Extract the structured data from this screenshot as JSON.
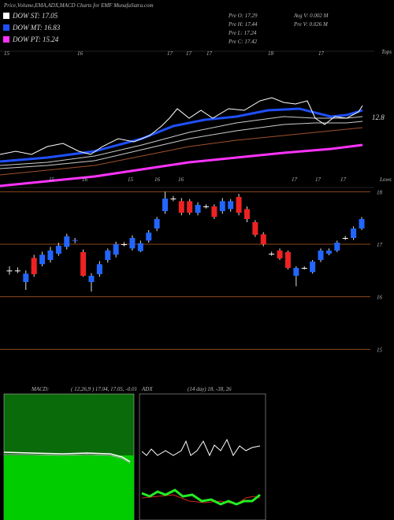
{
  "header": {
    "title": "Price,Volume,EMA,ADX,MACD Charts for EMF MunafaSutra.com"
  },
  "legend": [
    {
      "label": "DOW ST: 17.05",
      "color": "#ffffff"
    },
    {
      "label": "DOW MT: 16.83",
      "color": "#1e50ff"
    },
    {
      "label": "DOW PT: 15.24",
      "color": "#ff33ff"
    }
  ],
  "stats": [
    "Pre  O: 17.29",
    "Pre  H: 17.44",
    "Pre  L: 17.24",
    "Pre  C: 17.42",
    "Avg V: 0.002  M",
    "Pre  V: 0.026  M"
  ],
  "ema_panel": {
    "top_label": "Tops",
    "bottom_label": "Lows",
    "level_label": "12.8",
    "top_dates": [
      "15",
      "16",
      "17",
      "17",
      "17",
      "18",
      "17"
    ],
    "bottom_dates": [
      "15",
      "16",
      "15",
      "16",
      "16",
      "17",
      "17",
      "17"
    ]
  },
  "chart_data": {
    "type": "candlestick",
    "up_color": "#2266ff",
    "down_color": "#ee2222",
    "grid_color": "#8b4a1a",
    "ylim": [
      14.75,
      18.05
    ],
    "yticks": [
      15,
      16,
      17,
      18
    ],
    "open": [
      16.5,
      16.5,
      16.28,
      16.74,
      16.62,
      16.7,
      16.82,
      16.95,
      17.07,
      16.85,
      16.28,
      16.43,
      16.7,
      16.8,
      17.0,
      16.92,
      16.87,
      17.07,
      17.3,
      17.63,
      17.87,
      17.82,
      17.82,
      17.6,
      17.72,
      17.72,
      17.63,
      17.67,
      17.9,
      17.67,
      17.42,
      17.19,
      16.82,
      16.88,
      16.85,
      16.4,
      16.55,
      16.47,
      16.7,
      16.82,
      16.88,
      17.12,
      17.12,
      17.3
    ],
    "high": [
      16.58,
      16.56,
      16.5,
      16.8,
      16.86,
      16.95,
      17.03,
      17.2,
      17.12,
      16.9,
      16.45,
      16.68,
      16.92,
      17.05,
      17.04,
      17.17,
      17.07,
      17.27,
      17.52,
      18.0,
      17.92,
      17.88,
      17.86,
      17.8,
      17.76,
      17.76,
      17.88,
      17.86,
      17.96,
      17.72,
      17.46,
      17.23,
      16.86,
      16.92,
      16.88,
      16.58,
      16.58,
      16.7,
      16.92,
      16.92,
      17.07,
      17.16,
      17.34,
      17.52
    ],
    "low": [
      16.42,
      16.45,
      16.13,
      16.38,
      16.58,
      16.65,
      16.78,
      16.9,
      17.02,
      16.38,
      16.1,
      16.38,
      16.65,
      16.75,
      16.96,
      16.88,
      16.85,
      17.03,
      17.25,
      17.58,
      17.82,
      17.55,
      17.56,
      17.55,
      17.68,
      17.48,
      17.58,
      17.62,
      17.55,
      17.42,
      17.14,
      16.96,
      16.78,
      16.7,
      16.52,
      16.2,
      16.52,
      16.44,
      16.66,
      16.79,
      16.85,
      17.08,
      17.08,
      17.27
    ],
    "close": [
      16.5,
      16.5,
      16.44,
      16.43,
      16.8,
      16.88,
      16.97,
      17.15,
      17.08,
      16.4,
      16.4,
      16.62,
      16.88,
      17.0,
      17.0,
      17.12,
      17.02,
      17.22,
      17.48,
      17.87,
      17.87,
      17.6,
      17.6,
      17.75,
      17.72,
      17.52,
      17.82,
      17.82,
      17.6,
      17.48,
      17.18,
      17.0,
      16.82,
      16.73,
      16.55,
      16.55,
      16.55,
      16.67,
      16.88,
      16.88,
      17.03,
      17.12,
      17.3,
      17.48
    ]
  },
  "macd_panel": {
    "label": "MACD:",
    "params": "( 12,26,9 ) 17.04, 17.05, -0.01"
  },
  "adx_panel": {
    "label": "ADX",
    "params": "(14  day) 18, -38, 26"
  }
}
